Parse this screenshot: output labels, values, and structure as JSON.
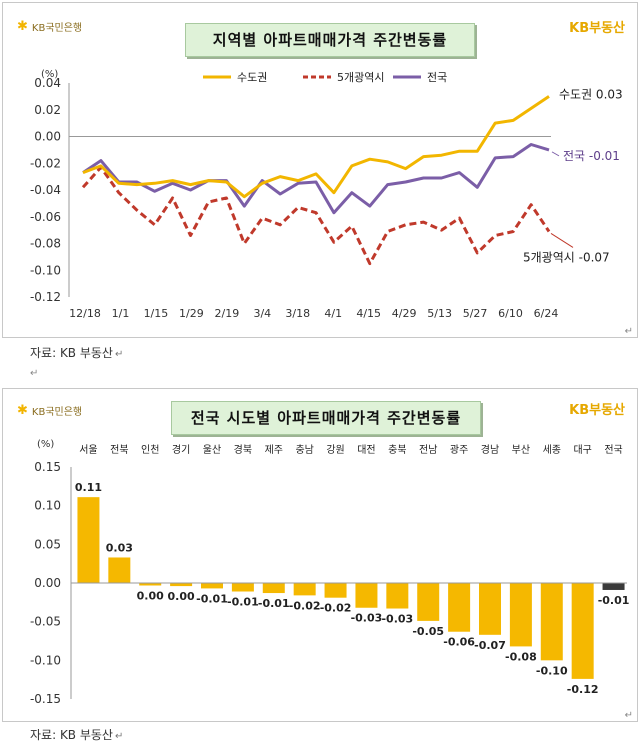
{
  "chart_data": [
    {
      "type": "line",
      "title": "지역별 아파트매매가격 주간변동률",
      "ylabel": "(%)",
      "ylim": [
        -0.12,
        0.04
      ],
      "yticks": [
        "0.04",
        "0.02",
        "0.00",
        "-0.02",
        "-0.04",
        "-0.06",
        "-0.08",
        "-0.10",
        "-0.12"
      ],
      "x_tick_labels": [
        "12/18",
        "1/1",
        "1/15",
        "1/29",
        "2/19",
        "3/4",
        "3/18",
        "4/1",
        "4/15",
        "4/29",
        "5/13",
        "5/27",
        "6/10",
        "6/24"
      ],
      "legend_position": "top-center",
      "grid": false,
      "series": [
        {
          "name": "수도권",
          "color": "#f2b600",
          "style": "solid",
          "end_label": "수도권 0.03",
          "values": [
            -0.027,
            -0.022,
            -0.035,
            -0.036,
            -0.035,
            -0.033,
            -0.036,
            -0.033,
            -0.034,
            -0.045,
            -0.035,
            -0.03,
            -0.033,
            -0.028,
            -0.042,
            -0.022,
            -0.017,
            -0.019,
            -0.024,
            -0.015,
            -0.014,
            -0.011,
            -0.011,
            0.01,
            0.012,
            0.021,
            0.03
          ]
        },
        {
          "name": "5개광역시",
          "color": "#c0392b",
          "style": "dashed",
          "end_label": "5개광역시 -0.07",
          "values": [
            -0.038,
            -0.023,
            -0.042,
            -0.055,
            -0.066,
            -0.046,
            -0.074,
            -0.049,
            -0.046,
            -0.08,
            -0.061,
            -0.066,
            -0.053,
            -0.057,
            -0.079,
            -0.067,
            -0.095,
            -0.071,
            -0.066,
            -0.064,
            -0.07,
            -0.061,
            -0.087,
            -0.074,
            -0.071,
            -0.051,
            -0.071
          ]
        },
        {
          "name": "전국",
          "color": "#7b5ea7",
          "style": "solid",
          "end_label": "전국 -0.01",
          "values": [
            -0.027,
            -0.018,
            -0.034,
            -0.034,
            -0.041,
            -0.035,
            -0.04,
            -0.033,
            -0.033,
            -0.052,
            -0.033,
            -0.043,
            -0.035,
            -0.034,
            -0.057,
            -0.042,
            -0.052,
            -0.036,
            -0.034,
            -0.031,
            -0.031,
            -0.027,
            -0.038,
            -0.016,
            -0.015,
            -0.006,
            -0.01
          ]
        }
      ],
      "source": "자료: KB 부동산"
    },
    {
      "type": "bar",
      "title": "전국 시도별 아파트매매가격 주간변동률",
      "ylabel": "(%)",
      "ylim": [
        -0.15,
        0.15
      ],
      "yticks": [
        "0.15",
        "0.10",
        "0.05",
        "0.00",
        "-0.05",
        "-0.10",
        "-0.15"
      ],
      "categories": [
        "서울",
        "전북",
        "인천",
        "경기",
        "울산",
        "경북",
        "제주",
        "충남",
        "강원",
        "대전",
        "충북",
        "전남",
        "광주",
        "경남",
        "부산",
        "세종",
        "대구",
        "전국"
      ],
      "values": [
        0.111,
        0.033,
        -0.003,
        -0.004,
        -0.007,
        -0.011,
        -0.013,
        -0.016,
        -0.019,
        -0.032,
        -0.033,
        -0.049,
        -0.063,
        -0.067,
        -0.082,
        -0.1,
        -0.124,
        -0.009
      ],
      "data_labels": [
        "0.11",
        "0.03",
        "0.00",
        "0.00",
        "-0.01",
        "-0.01",
        "-0.01",
        "-0.02",
        "-0.02",
        "-0.03",
        "-0.03",
        "-0.05",
        "-0.06",
        "-0.07",
        "-0.08",
        "-0.10",
        "-0.12",
        "-0.01"
      ],
      "bar_color": "#f5b800",
      "highlight_color": "#3a3a3a",
      "highlight_category": "전국",
      "grid": false,
      "source": "자료: KB 부동산"
    }
  ],
  "logo_text": "KB국민은행",
  "brand_text": "KB부동산",
  "para_mark": "↵",
  "para_mark2": "↵",
  "para_mark3": "↵"
}
